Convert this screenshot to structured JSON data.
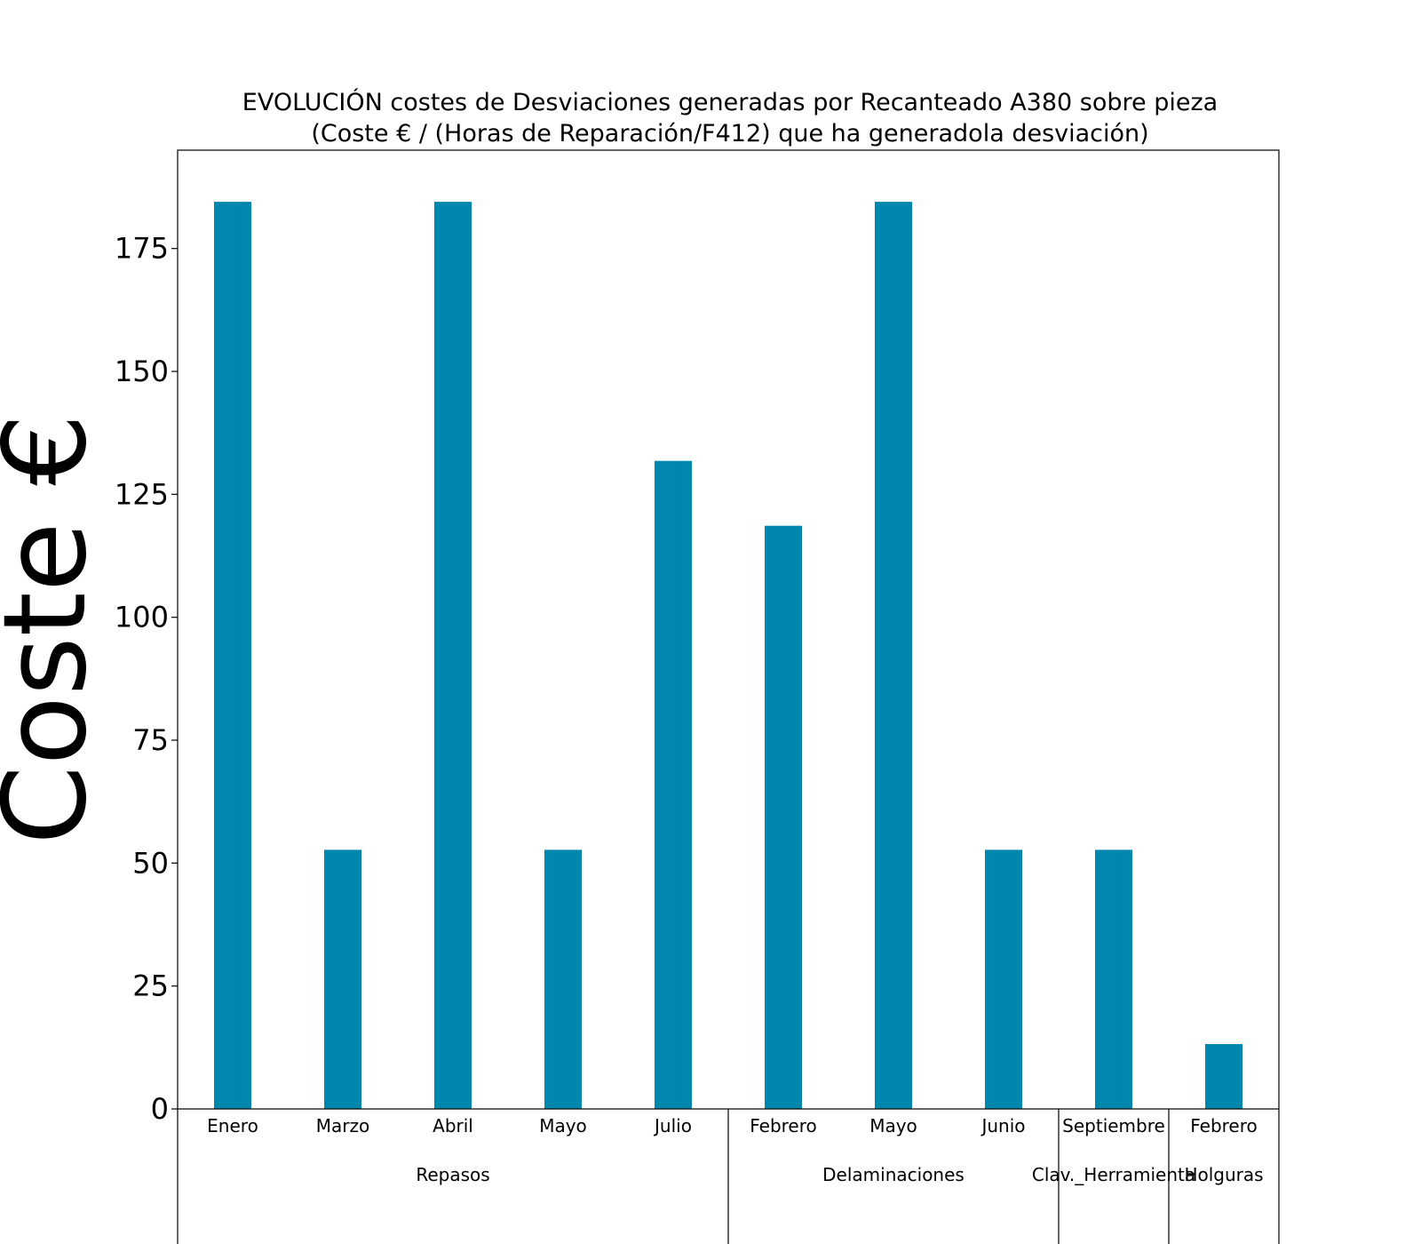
{
  "chart_data": {
    "type": "bar",
    "title_lines": [
      "EVOLUCIÓN costes de Desviaciones  generadas  por Recanteado A380 sobre pieza",
      "(Coste € / (Horas de Reparación/F412) que ha generadola desviación)"
    ],
    "xlabel": "",
    "ylabel": "Coste €",
    "ylim": [
      0,
      195
    ],
    "yticks": [
      0,
      25,
      50,
      75,
      100,
      125,
      150,
      175
    ],
    "grid": false,
    "bar_color": "#0087ae",
    "categories": [
      "Enero",
      "Marzo",
      "Abril",
      "Mayo",
      "Julio",
      "Febrero",
      "Mayo",
      "Junio",
      "Septiembre",
      "Febrero"
    ],
    "values": [
      184.5,
      52.7,
      184.5,
      52.7,
      131.8,
      118.6,
      184.5,
      52.7,
      52.7,
      13.2
    ],
    "groups": [
      {
        "label": "Repasos",
        "count": 5
      },
      {
        "label": "Delaminaciones",
        "count": 3
      },
      {
        "label": "Clav._Herramienta",
        "count": 1
      },
      {
        "label": "Holguras",
        "count": 1
      }
    ]
  }
}
